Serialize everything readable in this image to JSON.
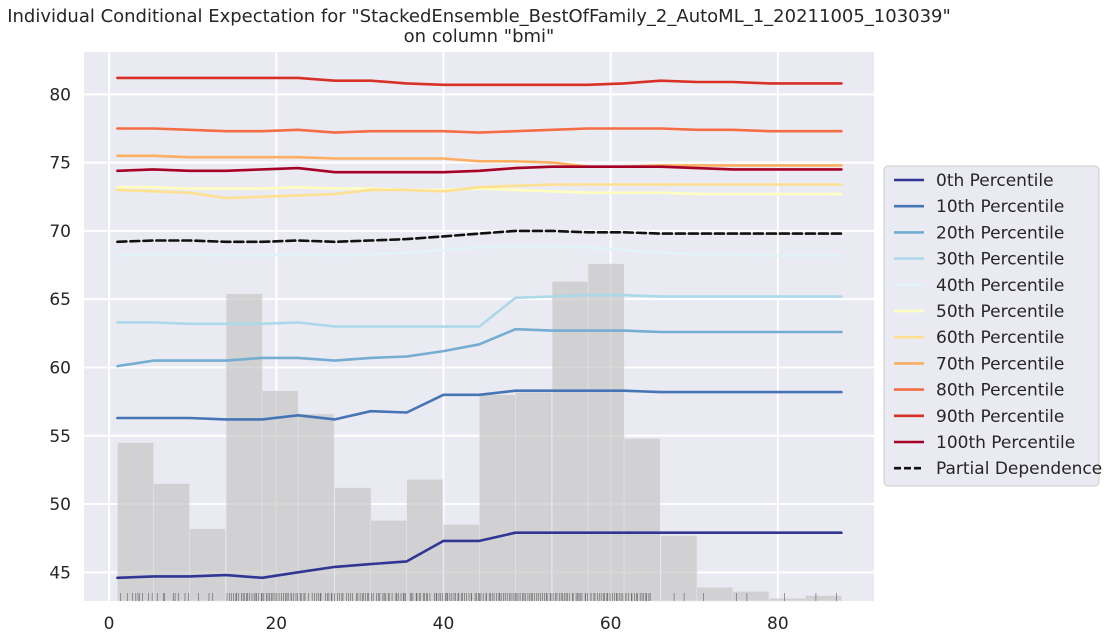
{
  "chart_data": {
    "type": "line",
    "title": "Individual Conditional Expectation for \"StackedEnsemble_BestOfFamily_2_AutoML_1_20211005_103039\"",
    "subtitle": "on column \"bmi\"",
    "xlabel": "",
    "ylabel": "",
    "xlim": [
      -3,
      91.5
    ],
    "ylim": [
      42.9,
      83.1
    ],
    "xticks": [
      0,
      20,
      40,
      60,
      80
    ],
    "yticks": [
      45,
      50,
      55,
      60,
      65,
      70,
      75,
      80
    ],
    "grid": true,
    "legend_position": "right",
    "x": [
      1,
      5.3,
      9.6,
      14,
      18.3,
      22.6,
      27,
      31.3,
      35.6,
      40,
      44.3,
      48.6,
      53,
      57.3,
      61.6,
      66,
      70.3,
      74.6,
      79,
      83.3,
      87.6
    ],
    "series": [
      {
        "name": "0th Percentile",
        "color": "#313695",
        "dashed": false,
        "values": [
          44.6,
          44.7,
          44.7,
          44.8,
          44.6,
          45.0,
          45.4,
          45.6,
          45.8,
          47.3,
          47.3,
          47.9,
          47.9,
          47.9,
          47.9,
          47.9,
          47.9,
          47.9,
          47.9,
          47.9,
          47.9
        ]
      },
      {
        "name": "10th Percentile",
        "color": "#4575b4",
        "dashed": false,
        "values": [
          56.3,
          56.3,
          56.3,
          56.2,
          56.2,
          56.5,
          56.2,
          56.8,
          56.7,
          58.0,
          58.0,
          58.3,
          58.3,
          58.3,
          58.3,
          58.2,
          58.2,
          58.2,
          58.2,
          58.2,
          58.2
        ]
      },
      {
        "name": "20th Percentile",
        "color": "#74add1",
        "dashed": false,
        "values": [
          60.1,
          60.5,
          60.5,
          60.5,
          60.7,
          60.7,
          60.5,
          60.7,
          60.8,
          61.2,
          61.7,
          62.8,
          62.7,
          62.7,
          62.7,
          62.6,
          62.6,
          62.6,
          62.6,
          62.6,
          62.6
        ]
      },
      {
        "name": "30th Percentile",
        "color": "#abd9e9",
        "dashed": false,
        "values": [
          63.3,
          63.3,
          63.2,
          63.2,
          63.2,
          63.3,
          63.0,
          63.0,
          63.0,
          63.0,
          63.0,
          65.1,
          65.2,
          65.3,
          65.3,
          65.2,
          65.2,
          65.2,
          65.2,
          65.2,
          65.2
        ]
      },
      {
        "name": "40th Percentile",
        "color": "#e0f3f8",
        "dashed": false,
        "values": [
          68.2,
          68.3,
          68.3,
          68.2,
          68.2,
          68.3,
          68.2,
          68.3,
          68.4,
          68.6,
          68.8,
          68.9,
          68.9,
          68.8,
          68.6,
          68.4,
          68.3,
          68.3,
          68.2,
          68.2,
          68.2
        ]
      },
      {
        "name": "50th Percentile",
        "color": "#ffffbf",
        "dashed": false,
        "values": [
          73.2,
          73.2,
          73.1,
          73.1,
          73.1,
          73.2,
          73.1,
          73.1,
          73.0,
          73.0,
          73.1,
          73.0,
          72.9,
          72.8,
          72.8,
          72.8,
          72.7,
          72.7,
          72.7,
          72.7,
          72.7
        ]
      },
      {
        "name": "60th Percentile",
        "color": "#fee090",
        "dashed": false,
        "values": [
          73.0,
          72.9,
          72.8,
          72.4,
          72.5,
          72.6,
          72.7,
          73.0,
          73.0,
          72.9,
          73.2,
          73.3,
          73.4,
          73.4,
          73.4,
          73.4,
          73.4,
          73.4,
          73.4,
          73.4,
          73.4
        ]
      },
      {
        "name": "70th Percentile",
        "color": "#fdae61",
        "dashed": false,
        "values": [
          75.5,
          75.5,
          75.4,
          75.4,
          75.4,
          75.4,
          75.3,
          75.3,
          75.3,
          75.3,
          75.1,
          75.1,
          75.0,
          74.7,
          74.7,
          74.8,
          74.8,
          74.8,
          74.8,
          74.8,
          74.8
        ]
      },
      {
        "name": "80th Percentile",
        "color": "#f46d43",
        "dashed": false,
        "values": [
          77.5,
          77.5,
          77.4,
          77.3,
          77.3,
          77.4,
          77.2,
          77.3,
          77.3,
          77.3,
          77.2,
          77.3,
          77.4,
          77.5,
          77.5,
          77.5,
          77.4,
          77.4,
          77.3,
          77.3,
          77.3
        ]
      },
      {
        "name": "90th Percentile",
        "color": "#d73027",
        "dashed": false,
        "values": [
          81.2,
          81.2,
          81.2,
          81.2,
          81.2,
          81.2,
          81.0,
          81.0,
          80.8,
          80.7,
          80.7,
          80.7,
          80.7,
          80.7,
          80.8,
          81.0,
          80.9,
          80.9,
          80.8,
          80.8,
          80.8
        ]
      },
      {
        "name": "100th Percentile",
        "color": "#a50026",
        "dashed": false,
        "values": [
          74.4,
          74.5,
          74.4,
          74.4,
          74.5,
          74.6,
          74.3,
          74.3,
          74.3,
          74.3,
          74.4,
          74.6,
          74.7,
          74.7,
          74.7,
          74.7,
          74.6,
          74.5,
          74.5,
          74.5,
          74.5
        ]
      },
      {
        "name": "Partial Dependence",
        "color": "#111111",
        "dashed": true,
        "values": [
          69.2,
          69.3,
          69.3,
          69.2,
          69.2,
          69.3,
          69.2,
          69.3,
          69.4,
          69.6,
          69.8,
          70.0,
          70.0,
          69.9,
          69.9,
          69.8,
          69.8,
          69.8,
          69.8,
          69.8,
          69.8
        ]
      }
    ],
    "histogram": {
      "color": "#c8c8c8",
      "bin_start": [
        1,
        5.3,
        9.6,
        14,
        18.3,
        22.6,
        27,
        31.3,
        35.6,
        40,
        44.3,
        48.6,
        53,
        57.3,
        61.6,
        66,
        70.3,
        74.6,
        79,
        83.3
      ],
      "bin_width": 4.33,
      "heights": [
        54.5,
        51.5,
        48.2,
        65.4,
        58.3,
        56.6,
        51.2,
        48.8,
        51.8,
        48.5,
        58.0,
        58.2,
        66.3,
        67.6,
        54.8,
        47.7,
        43.9,
        43.6,
        43.1,
        43.3
      ]
    },
    "rug": {
      "color": "#555555"
    }
  }
}
